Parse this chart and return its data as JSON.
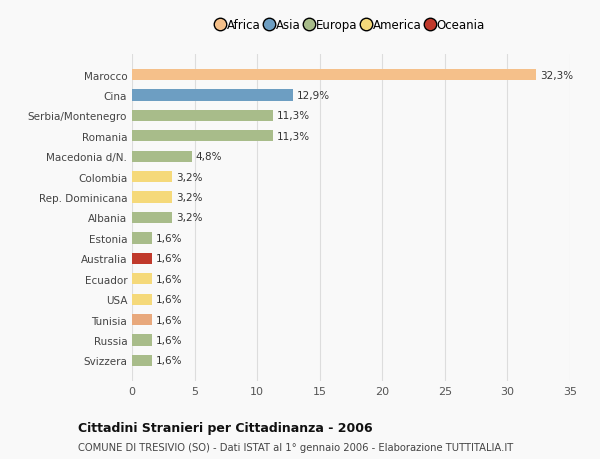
{
  "countries": [
    "Marocco",
    "Cina",
    "Serbia/Montenegro",
    "Romania",
    "Macedonia d/N.",
    "Colombia",
    "Rep. Dominicana",
    "Albania",
    "Estonia",
    "Australia",
    "Ecuador",
    "USA",
    "Tunisia",
    "Russia",
    "Svizzera"
  ],
  "values": [
    32.3,
    12.9,
    11.3,
    11.3,
    4.8,
    3.2,
    3.2,
    3.2,
    1.6,
    1.6,
    1.6,
    1.6,
    1.6,
    1.6,
    1.6
  ],
  "labels": [
    "32,3%",
    "12,9%",
    "11,3%",
    "11,3%",
    "4,8%",
    "3,2%",
    "3,2%",
    "3,2%",
    "1,6%",
    "1,6%",
    "1,6%",
    "1,6%",
    "1,6%",
    "1,6%",
    "1,6%"
  ],
  "colors": [
    "#F5C08A",
    "#6D9EC2",
    "#A8BC8A",
    "#A8BC8A",
    "#A8BC8A",
    "#F5D97A",
    "#F5D97A",
    "#A8BC8A",
    "#A8BC8A",
    "#C0392B",
    "#F5D97A",
    "#F5D97A",
    "#E8A87C",
    "#A8BC8A",
    "#A8BC8A"
  ],
  "legend_labels": [
    "Africa",
    "Asia",
    "Europa",
    "America",
    "Oceania"
  ],
  "legend_colors": [
    "#F5C08A",
    "#6D9EC2",
    "#A8BC8A",
    "#F5D97A",
    "#C0392B"
  ],
  "title": "Cittadini Stranieri per Cittadinanza - 2006",
  "subtitle": "COMUNE DI TRESIVIO (SO) - Dati ISTAT al 1° gennaio 2006 - Elaborazione TUTTITALIA.IT",
  "xlim": [
    0,
    35
  ],
  "xticks": [
    0,
    5,
    10,
    15,
    20,
    25,
    30,
    35
  ],
  "background_color": "#f9f9f9",
  "grid_color": "#dddddd",
  "bar_height": 0.55,
  "label_fontsize": 7.5,
  "ytick_fontsize": 7.5,
  "xtick_fontsize": 8,
  "title_fontsize": 9,
  "subtitle_fontsize": 7.2,
  "legend_fontsize": 8.5
}
